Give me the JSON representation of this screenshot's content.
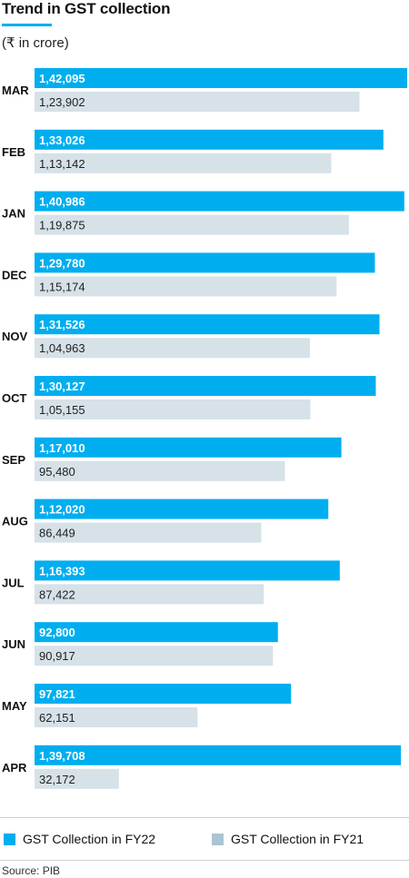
{
  "colors": {
    "fy22": "#00aeef",
    "fy21": "#d6e1e8",
    "fy21_legend": "#a9c4d2",
    "accent": "#00aeef"
  },
  "chart_data": {
    "type": "bar",
    "orientation": "horizontal",
    "title": "Trend in GST collection",
    "subtitle": "(₹ in crore)",
    "categories": [
      "MAR",
      "FEB",
      "JAN",
      "DEC",
      "NOV",
      "OCT",
      "SEP",
      "AUG",
      "JUL",
      "JUN",
      "MAY",
      "APR"
    ],
    "series": [
      {
        "name": "GST Collection in FY22",
        "values": [
          142095,
          133026,
          140986,
          129780,
          131526,
          130127,
          117010,
          112020,
          116393,
          92800,
          97821,
          139708
        ],
        "labels": [
          "1,42,095",
          "1,33,026",
          "1,40,986",
          "1,29,780",
          "1,31,526",
          "1,30,127",
          "1,17,010",
          "1,12,020",
          "1,16,393",
          "92,800",
          "97,821",
          "1,39,708"
        ]
      },
      {
        "name": "GST Collection in FY21",
        "values": [
          123902,
          113142,
          119875,
          115174,
          104963,
          105155,
          95480,
          86449,
          87422,
          90917,
          62151,
          32172
        ],
        "labels": [
          "1,23,902",
          "1,13,142",
          "1,19,875",
          "1,15,174",
          "1,04,963",
          "1,05,155",
          "95,480",
          "86,449",
          "87,422",
          "90,917",
          "62,151",
          "32,172"
        ]
      }
    ],
    "legend_position": "bottom",
    "grid": false,
    "source": "Source: PIB"
  }
}
